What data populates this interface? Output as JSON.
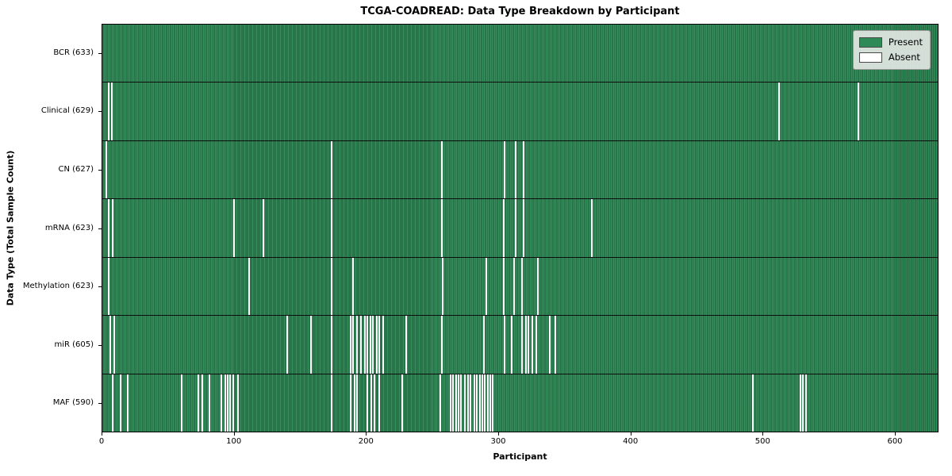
{
  "chart_data": {
    "type": "heatmap",
    "title": "TCGA-COADREAD: Data Type Breakdown by Participant",
    "xlabel": "Participant",
    "ylabel": "Data Type (Total Sample Count)",
    "x_ticks": [
      0,
      100,
      200,
      300,
      400,
      500,
      600
    ],
    "x_range": [
      0,
      633
    ],
    "total_participants": 633,
    "grid": false,
    "legend": {
      "position": "upper right",
      "entries": [
        {
          "label": "Present",
          "color": "#2e8b57"
        },
        {
          "label": "Absent",
          "color": "#ffffff"
        }
      ]
    },
    "colors": {
      "present": "#2e8b57",
      "absent": "#ffffff",
      "bar_edge": "#14402a",
      "row_separator": "#0d0d0d"
    },
    "rows": [
      {
        "label": "BCR (633)",
        "count": 633,
        "absent": []
      },
      {
        "label": "Clinical (629)",
        "count": 629,
        "absent": [
          5,
          7,
          513,
          573
        ]
      },
      {
        "label": "CN (627)",
        "count": 627,
        "absent": [
          3,
          174,
          257,
          305,
          313,
          319
        ]
      },
      {
        "label": "mRNA (623)",
        "count": 623,
        "absent": [
          5,
          8,
          100,
          122,
          174,
          257,
          304,
          313,
          319,
          371
        ]
      },
      {
        "label": "Methylation (623)",
        "count": 623,
        "absent": [
          5,
          111,
          174,
          190,
          258,
          291,
          304,
          312,
          318,
          330
        ]
      },
      {
        "label": "miR (605)",
        "count": 605,
        "absent": [
          6,
          9,
          140,
          158,
          174,
          188,
          190,
          193,
          196,
          199,
          201,
          203,
          205,
          208,
          210,
          213,
          230,
          257,
          289,
          305,
          310,
          318,
          321,
          323,
          326,
          329,
          339,
          343
        ]
      },
      {
        "label": "MAF (590)",
        "count": 590,
        "absent": [
          8,
          14,
          19,
          60,
          73,
          76,
          81,
          90,
          93,
          95,
          97,
          99,
          103,
          174,
          188,
          191,
          193,
          201,
          204,
          206,
          210,
          227,
          256,
          264,
          266,
          268,
          270,
          272,
          275,
          277,
          279,
          282,
          284,
          286,
          288,
          290,
          292,
          294,
          296,
          493,
          529,
          531,
          533
        ]
      }
    ]
  }
}
